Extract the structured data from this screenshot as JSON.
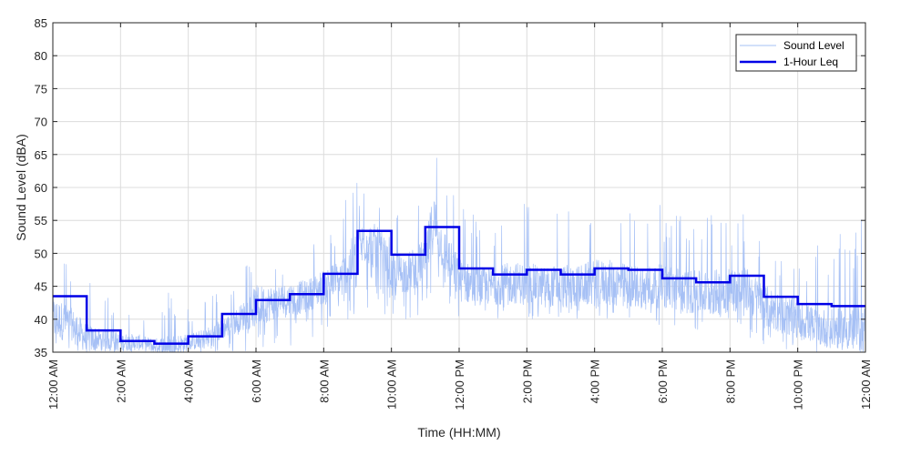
{
  "chart_data": {
    "type": "line",
    "xlabel": "Time (HH:MM)",
    "ylabel": "Sound Level (dBA)",
    "ylim": [
      35,
      85
    ],
    "xlim_hours": [
      0,
      24
    ],
    "y_ticks": [
      35,
      40,
      45,
      50,
      55,
      60,
      65,
      70,
      75,
      80,
      85
    ],
    "x_ticks": [
      {
        "hour": 0,
        "label": "12:00 AM"
      },
      {
        "hour": 2,
        "label": "2:00 AM"
      },
      {
        "hour": 4,
        "label": "4:00 AM"
      },
      {
        "hour": 6,
        "label": "6:00 AM"
      },
      {
        "hour": 8,
        "label": "8:00 AM"
      },
      {
        "hour": 10,
        "label": "10:00 AM"
      },
      {
        "hour": 12,
        "label": "12:00 PM"
      },
      {
        "hour": 14,
        "label": "2:00 PM"
      },
      {
        "hour": 16,
        "label": "4:00 PM"
      },
      {
        "hour": 18,
        "label": "6:00 PM"
      },
      {
        "hour": 20,
        "label": "8:00 PM"
      },
      {
        "hour": 22,
        "label": "10:00 PM"
      },
      {
        "hour": 24,
        "label": "12:00 AM"
      }
    ],
    "grid": true,
    "legend_position": "top-right",
    "series": [
      {
        "name": "Sound Level",
        "color": "#a6c0f5",
        "style": "thin",
        "x_hours": [
          0,
          0.5,
          1,
          1.5,
          2,
          2.5,
          3,
          3.5,
          4,
          4.5,
          5,
          5.5,
          6,
          6.5,
          7,
          7.5,
          8,
          8.5,
          9,
          9.25,
          9.5,
          9.75,
          10,
          10.5,
          11,
          11.25,
          11.5,
          12,
          12.5,
          13,
          13.5,
          14,
          14.5,
          15,
          15.5,
          16,
          16.5,
          17,
          17.5,
          18,
          18.5,
          19,
          19.5,
          20,
          20.5,
          21,
          21.5,
          22,
          22.5,
          23,
          23.5,
          24
        ],
        "mean": [
          40,
          39.5,
          37,
          37,
          36.5,
          36.5,
          36,
          36,
          36.5,
          37,
          38.5,
          40,
          42,
          42.5,
          43,
          43.5,
          45,
          46,
          50,
          52,
          51,
          50,
          47,
          47,
          49,
          55,
          51,
          46,
          45,
          45,
          45.5,
          45.5,
          45,
          45,
          45,
          45.5,
          45.5,
          45,
          45,
          45,
          44.5,
          44,
          44,
          44.5,
          44.5,
          42,
          41,
          40,
          39,
          38.5,
          38.5,
          38.5
        ],
        "peak": [
          55,
          49,
          48,
          44,
          43,
          42,
          41,
          45,
          42,
          44,
          44,
          46,
          53,
          50,
          51,
          51,
          53,
          57,
          63,
          60,
          61,
          58,
          56,
          58,
          59,
          68,
          60,
          59,
          57,
          56,
          58,
          58,
          57,
          59,
          58,
          60,
          60,
          59,
          59,
          58,
          58,
          57,
          58,
          58,
          56,
          55,
          52,
          52,
          51,
          52,
          54,
          56
        ],
        "floor": [
          35,
          35,
          35,
          35,
          35,
          35,
          35,
          35,
          35,
          35,
          35,
          35,
          35,
          35,
          36,
          37,
          38,
          39,
          40,
          41,
          41,
          41,
          40,
          40,
          40,
          42,
          41,
          40,
          40,
          40,
          40,
          40,
          40,
          40,
          40,
          40,
          40,
          40,
          40,
          39,
          38,
          38,
          38,
          38,
          37,
          36,
          35,
          35,
          35,
          35,
          35,
          35
        ]
      },
      {
        "name": "1-Hour Leq",
        "color": "#0000e6",
        "style": "step",
        "hours": [
          0,
          1,
          2,
          3,
          4,
          5,
          6,
          7,
          8,
          9,
          10,
          11,
          12,
          13,
          14,
          15,
          16,
          17,
          18,
          19,
          20,
          21,
          22,
          23
        ],
        "values": [
          43.5,
          38.3,
          36.7,
          36.3,
          37.4,
          40.8,
          42.9,
          43.8,
          46.9,
          53.4,
          49.8,
          54.0,
          47.7,
          46.8,
          47.5,
          46.8,
          47.7,
          47.5,
          46.2,
          45.6,
          46.6,
          43.4,
          42.3,
          42.0
        ]
      }
    ]
  }
}
